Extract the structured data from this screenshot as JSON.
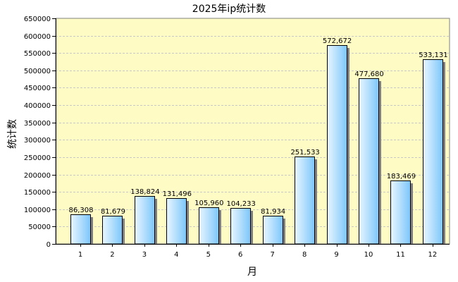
{
  "chart_data": {
    "type": "bar",
    "title": "2025年ip统计数",
    "xlabel": "月",
    "ylabel": "统计数",
    "categories": [
      "1",
      "2",
      "3",
      "4",
      "5",
      "6",
      "7",
      "8",
      "9",
      "10",
      "11",
      "12"
    ],
    "values": [
      86308,
      81679,
      138824,
      131496,
      105960,
      104233,
      81934,
      251533,
      572672,
      477680,
      183469,
      533131
    ],
    "data_labels": [
      "86,308",
      "81,679",
      "138,824",
      "131,496",
      "105,960",
      "104,233",
      "81,934",
      "251,533",
      "572,672",
      "477,680",
      "183,469",
      "533,131"
    ],
    "y_ticks": [
      "0",
      "50000",
      "100000",
      "150000",
      "200000",
      "250000",
      "300000",
      "350000",
      "400000",
      "450000",
      "500000",
      "550000",
      "600000",
      "650000"
    ],
    "ylim": [
      0,
      650000
    ],
    "grid": true,
    "legend": "none",
    "colors": {
      "plot_bg": "#FFFBC4",
      "bar_light": "#E8F6FF",
      "bar_dark": "#7CC6FA",
      "bar_shadow": "#808080",
      "grid": "#C8C8C8"
    }
  }
}
